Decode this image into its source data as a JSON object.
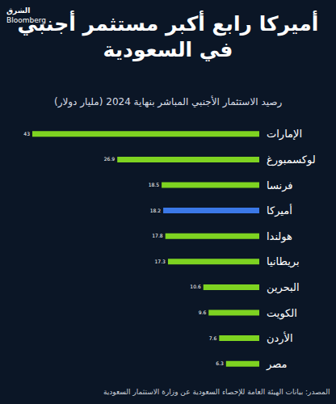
{
  "chart_data": {
    "type": "bar",
    "orientation": "horizontal",
    "title": "أميركا رابع أكبر مستثمر أجنبي في السعودية",
    "subtitle": "رصيد الاستثمار الأجنبي المباشر بنهاية 2024 (مليار دولار)",
    "source": "المصدر: بيانات الهيئة العامة للإحصاء السعودية عن وزارة الاستثمار السعودية",
    "logo": [
      "الشرق",
      "Bloomberg"
    ],
    "categories": [
      "الإمارات",
      "لوكسمبورغ",
      "فرنسا",
      "أميركا",
      "هولندا",
      "بريطانيا",
      "البحرين",
      "الكويت",
      "الأردن",
      "مصر"
    ],
    "values": [
      43,
      26.9,
      18.5,
      18.2,
      17.8,
      17.3,
      10.6,
      9.6,
      7.6,
      6.3
    ],
    "colors": [
      "#7ed321",
      "#7ed321",
      "#7ed321",
      "#3b78e7",
      "#7ed321",
      "#7ed321",
      "#7ed321",
      "#7ed321",
      "#7ed321",
      "#7ed321"
    ],
    "xlim": [
      0,
      43
    ],
    "data_labels": true,
    "tick_labels": "y",
    "grid": false
  }
}
